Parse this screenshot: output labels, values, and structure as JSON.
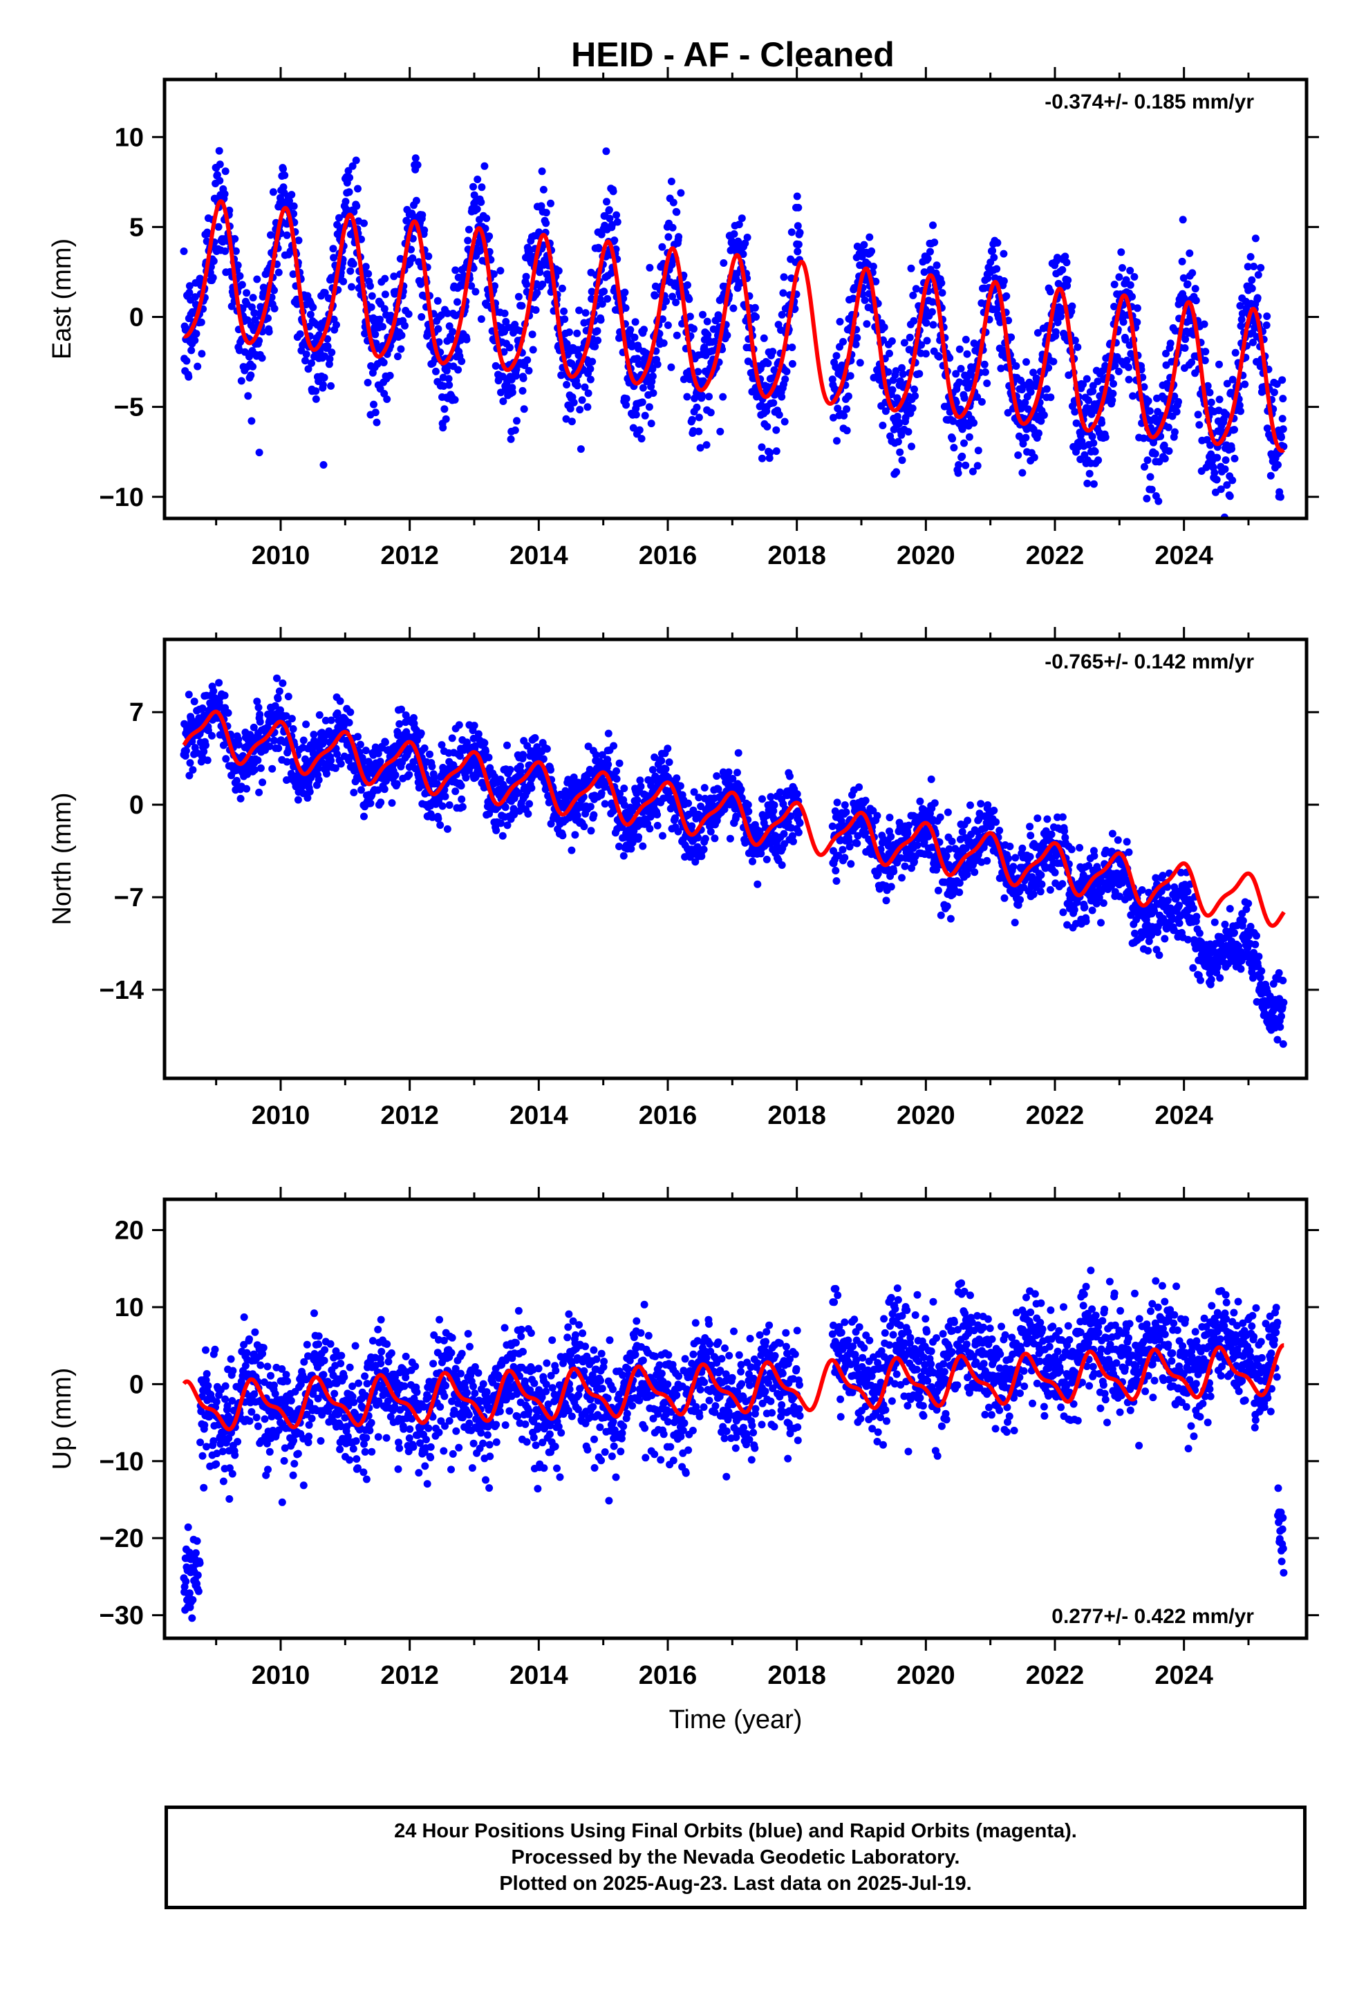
{
  "title": "HEID  - AF - Cleaned",
  "colors": {
    "observations": "#0000ff",
    "model": "#ff0000",
    "frame": "#000000"
  },
  "chart_data": [
    {
      "type": "scatter",
      "ylabel": "East (mm)",
      "rate_text": "-0.374+/- 0.185 mm/yr",
      "xlim": [
        2008.2,
        2025.9
      ],
      "ylim": [
        -11.2,
        13.2
      ],
      "yticks": [
        10,
        5,
        0,
        -5,
        -10
      ],
      "ytick_labels": [
        "10",
        "5",
        "0",
        "−5",
        "−10"
      ],
      "xtick_labels": [
        "2010",
        "2012",
        "2014",
        "2016",
        "2018",
        "2020",
        "2022",
        "2024"
      ],
      "xlabel": "",
      "series": [
        {
          "kind": "points",
          "color": "#0000ff",
          "x_range": [
            2008.5,
            2025.55
          ],
          "gap": [
            2018.05,
            2018.55
          ],
          "trend": {
            "t0": 2008.5,
            "a": 2.3,
            "b": -0.374
          },
          "annual": {
            "amp": 3.8,
            "phase": 1.2
          },
          "semiannual": {
            "amp": 0.6,
            "phase": 0.3
          },
          "scatter_sd": 1.7,
          "amp_change": -0.3
        },
        {
          "kind": "model",
          "color": "#ff0000",
          "x_range": [
            2008.5,
            2025.55
          ],
          "trend": {
            "t0": 2008.5,
            "a": 2.3,
            "b": -0.374
          },
          "annual": {
            "amp": 3.8,
            "phase": 1.2
          },
          "semiannual": {
            "amp": 0.6,
            "phase": 0.3
          }
        }
      ]
    },
    {
      "type": "scatter",
      "ylabel": "North (mm)",
      "rate_text": "-0.765+/- 0.142 mm/yr",
      "xlim": [
        2008.2,
        2025.9
      ],
      "ylim": [
        -20.7,
        12.5
      ],
      "yticks": [
        7,
        0,
        -7,
        -14
      ],
      "ytick_labels": [
        "7",
        "0",
        "−7",
        "−14"
      ],
      "xtick_labels": [
        "2010",
        "2012",
        "2014",
        "2016",
        "2018",
        "2020",
        "2022",
        "2024"
      ],
      "xlabel": "",
      "series": [
        {
          "kind": "points",
          "color": "#0000ff",
          "x_range": [
            2008.5,
            2025.55
          ],
          "gap": [
            2018.05,
            2018.55
          ],
          "trend": {
            "t0": 2008.5,
            "a": 5.6,
            "b": -0.765
          },
          "annual": {
            "amp": 1.6,
            "phase": 2.0
          },
          "semiannual": {
            "amp": 0.5,
            "phase": 0.8
          },
          "scatter_sd": 1.3,
          "accel": -0.22,
          "accel_start": 2021.5
        },
        {
          "kind": "model",
          "color": "#ff0000",
          "x_range": [
            2008.5,
            2025.55
          ],
          "trend": {
            "t0": 2008.5,
            "a": 5.6,
            "b": -0.765
          },
          "annual": {
            "amp": 1.6,
            "phase": 2.0
          },
          "semiannual": {
            "amp": 0.5,
            "phase": 0.8
          }
        }
      ]
    },
    {
      "type": "scatter",
      "ylabel": "Up (mm)",
      "rate_text": "0.277+/- 0.422 mm/yr",
      "xlim": [
        2008.2,
        2025.9
      ],
      "ylim": [
        -33,
        24
      ],
      "yticks": [
        20,
        10,
        0,
        -10,
        -20,
        -30
      ],
      "ytick_labels": [
        "20",
        "10",
        "0",
        "−10",
        "−20",
        "−30"
      ],
      "xtick_labels": [
        "2010",
        "2012",
        "2014",
        "2016",
        "2018",
        "2020",
        "2022",
        "2024"
      ],
      "xlabel": "Time (year)",
      "series": [
        {
          "kind": "points",
          "color": "#0000ff",
          "x_range": [
            2008.5,
            2025.55
          ],
          "gap": [
            2018.05,
            2018.55
          ],
          "trend": {
            "t0": 2008.5,
            "a": -3.0,
            "b": 0.277
          },
          "annual": {
            "amp": 2.6,
            "phase": 4.0
          },
          "semiannual": {
            "amp": 1.1,
            "phase": 1.5
          },
          "scatter_sd": 3.4,
          "offset_after_gap": 2.5,
          "early_outliers": {
            "x_range": [
              2008.5,
              2008.75
            ],
            "mean": -25,
            "sd": 2.5
          },
          "late_outliers": {
            "x_range": [
              2025.45,
              2025.55
            ],
            "mean": -19,
            "sd": 3
          }
        },
        {
          "kind": "model",
          "color": "#ff0000",
          "x_range": [
            2008.5,
            2025.55
          ],
          "trend": {
            "t0": 2008.5,
            "a": -3.0,
            "b": 0.277
          },
          "annual": {
            "amp": 2.6,
            "phase": 4.0
          },
          "semiannual": {
            "amp": 1.1,
            "phase": 1.5
          }
        }
      ]
    }
  ],
  "footer": {
    "line1": "24 Hour Positions Using Final Orbits (blue) and Rapid Orbits (magenta).",
    "line2": "Processed by the Nevada Geodetic Laboratory.",
    "line3": "Plotted on 2025-Aug-23. Last data on 2025-Jul-19."
  }
}
